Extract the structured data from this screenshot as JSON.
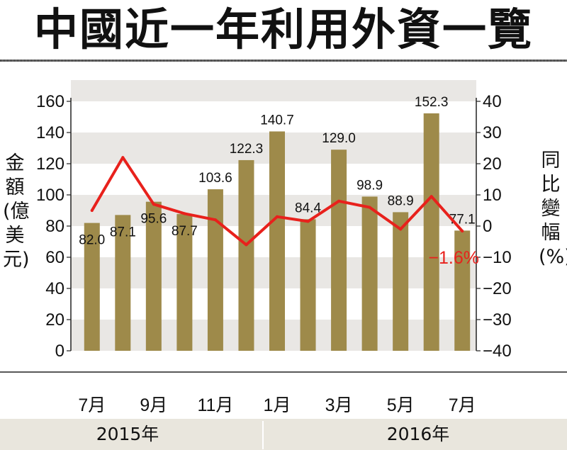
{
  "title": "中國近一年利用外資一覽",
  "chart_data": {
    "type": "bar",
    "categories": [
      "2015-07",
      "2015-08",
      "2015-09",
      "2015-10",
      "2015-11",
      "2015-12",
      "2016-01",
      "2016-02",
      "2016-03",
      "2016-04",
      "2016-05",
      "2016-06",
      "2016-07"
    ],
    "x_tick_labels": [
      "7月",
      "",
      "9月",
      "",
      "11月",
      "",
      "1月",
      "",
      "3月",
      "",
      "5月",
      "",
      "7月"
    ],
    "year_labels": [
      "2015年",
      "2016年"
    ],
    "series": [
      {
        "type": "bar",
        "axis": "left",
        "color": "#9e8a4a",
        "values": [
          82.0,
          87.1,
          95.6,
          87.7,
          103.6,
          122.3,
          140.7,
          84.4,
          129.0,
          98.9,
          88.9,
          152.3,
          77.1
        ],
        "labels": [
          "82.0",
          "87.1",
          "95.6",
          "87.7",
          "103.6",
          "122.3",
          "140.7",
          "84.4",
          "129.0",
          "98.9",
          "88.9",
          "152.3",
          "77.1"
        ]
      },
      {
        "type": "line",
        "axis": "right",
        "color": "#e8211c",
        "values": [
          5,
          22,
          7,
          4,
          2,
          -6,
          3,
          1.5,
          8,
          6,
          -1,
          9.5,
          -1.6
        ]
      }
    ],
    "annotation": {
      "text": "−1.6%",
      "color": "#e8211c"
    },
    "ylabel_left": "金額(億美元)",
    "ylabel_right": "同比變幅(%)",
    "ylim_left": [
      0,
      160
    ],
    "yticks_left": [
      0,
      20,
      40,
      60,
      80,
      100,
      120,
      140,
      160
    ],
    "ylim_right": [
      -40,
      40
    ],
    "yticks_right": [
      "−40",
      "−30",
      "−20",
      "−10",
      "0",
      "10",
      "20",
      "30",
      "40"
    ],
    "grid": "alternating horizontal bands"
  }
}
